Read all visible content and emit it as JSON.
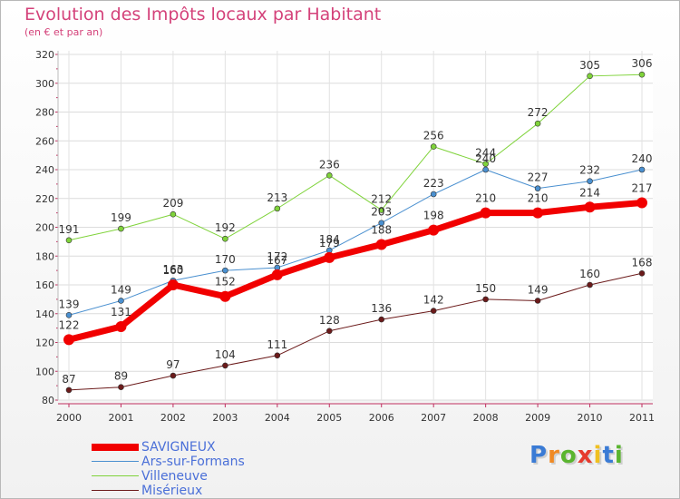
{
  "title": "Evolution des Impôts locaux par Habitant",
  "subtitle": "(en € et par an)",
  "logo": {
    "letters": [
      "P",
      "r",
      "o",
      "x",
      "i",
      "t",
      "i"
    ],
    "colors": [
      "#3a7bd5",
      "#f08a24",
      "#5ab52f",
      "#e63a2e",
      "#f0c020",
      "#3a7bd5",
      "#5ab52f"
    ]
  },
  "chart_data": {
    "type": "line",
    "x": [
      "2000",
      "2001",
      "2002",
      "2003",
      "2004",
      "2005",
      "2006",
      "2007",
      "2008",
      "2009",
      "2010",
      "2011"
    ],
    "ylim": [
      80,
      320
    ],
    "yticks": [
      "80",
      "100",
      "120",
      "140",
      "160",
      "180",
      "200",
      "220",
      "240",
      "260",
      "280",
      "300",
      "320"
    ],
    "grid": true,
    "legend_position": "bottom-left",
    "series": [
      {
        "name": "Misérieux",
        "color": "#6b1a1a",
        "width": 1,
        "values": [
          87,
          89,
          97,
          104,
          111,
          128,
          136,
          142,
          150,
          149,
          160,
          168
        ],
        "labels": [
          "87",
          "89",
          "97",
          "104",
          "111",
          "128",
          "136",
          "142",
          "150",
          "149",
          "160",
          "168"
        ]
      },
      {
        "name": "Villeneuve",
        "color": "#7fd33a",
        "width": 1,
        "values": [
          191,
          199,
          209,
          192,
          213,
          236,
          212,
          256,
          244,
          272,
          305,
          306
        ],
        "labels": [
          "191",
          "199",
          "209",
          "192",
          "213",
          "236",
          "212",
          "256",
          "244",
          "272",
          "305",
          "306"
        ]
      },
      {
        "name": "Ars-sur-Formans",
        "color": "#4a90d0",
        "width": 1,
        "values": [
          139,
          149,
          163,
          170,
          172,
          184,
          203,
          223,
          240,
          227,
          232,
          240
        ],
        "labels": [
          "139",
          "149",
          "163",
          "170",
          "172",
          "184",
          "203",
          "223",
          "240",
          "227",
          "232",
          "240"
        ]
      },
      {
        "name": "SAVIGNEUX",
        "color": "#f10000",
        "width": 7,
        "values": [
          122,
          131,
          160,
          152,
          167,
          179,
          188,
          198,
          210,
          210,
          214,
          217
        ],
        "labels": [
          "122",
          "131",
          "160",
          "152",
          "167",
          "179",
          "188",
          "198",
          "210",
          "210",
          "214",
          "217"
        ]
      }
    ],
    "legend_order": [
      "SAVIGNEUX",
      "Ars-sur-Formans",
      "Villeneuve",
      "Misérieux"
    ]
  }
}
